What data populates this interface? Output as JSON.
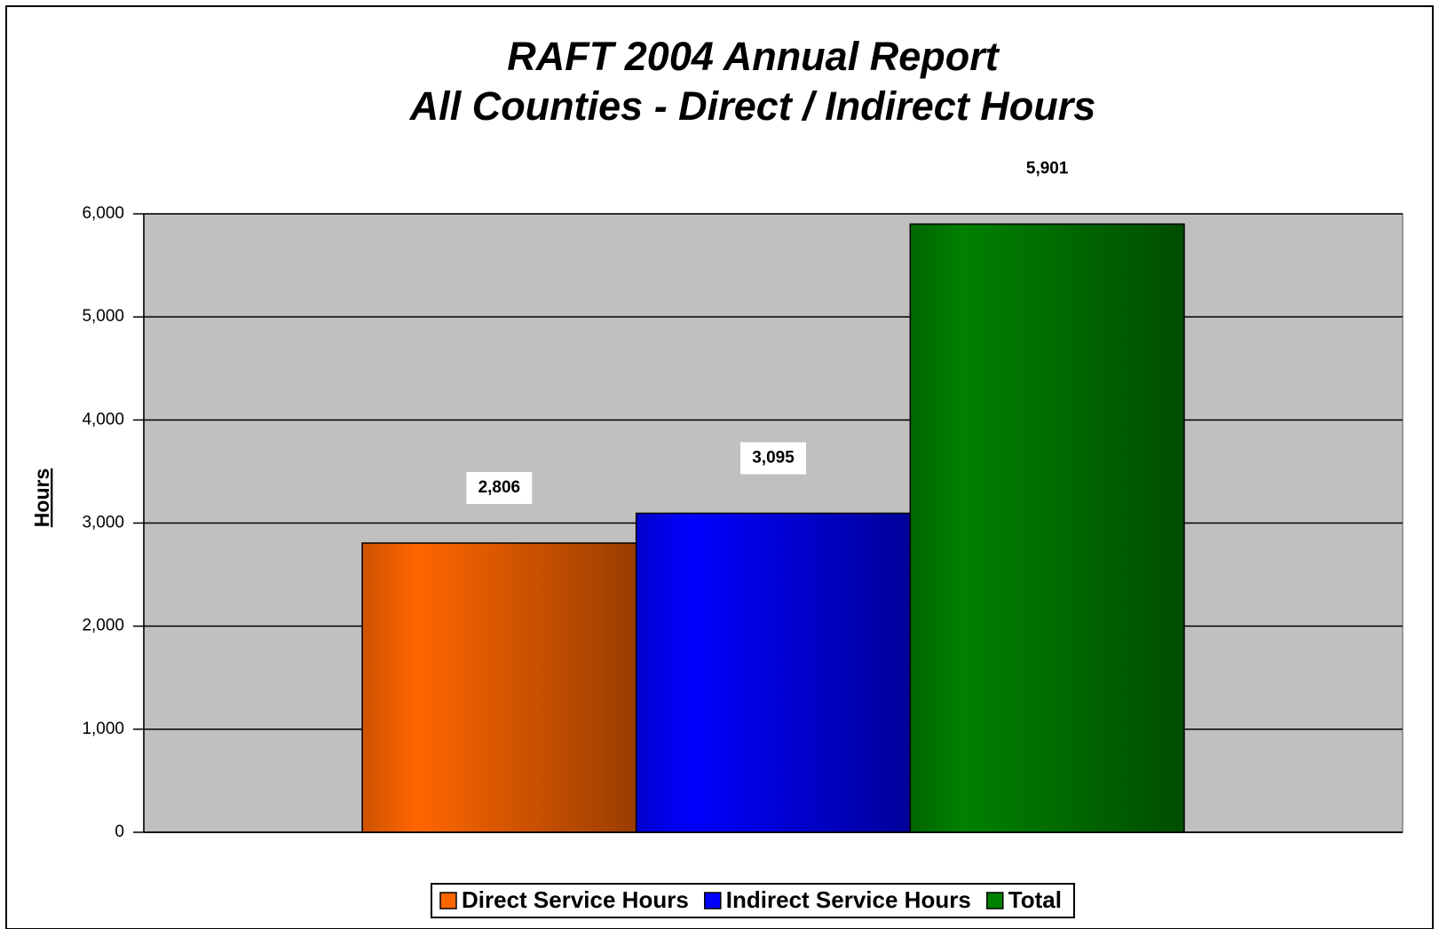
{
  "chart_data": {
    "type": "bar",
    "title": [
      "RAFT 2004 Annual Report",
      "All Counties - Direct / Indirect Hours"
    ],
    "y_label": "Hours",
    "categories": [
      null
    ],
    "series": [
      {
        "name": "Direct Service Hours",
        "color": "#ff6600",
        "values": [
          2806
        ],
        "value_labels": [
          "2,806"
        ]
      },
      {
        "name": "Indirect Service Hours",
        "color": "#0000ff",
        "values": [
          3095
        ],
        "value_labels": [
          "3,095"
        ]
      },
      {
        "name": "Total",
        "color": "#008000",
        "values": [
          5901
        ],
        "value_labels": [
          "5,901"
        ]
      }
    ],
    "ylim": [
      0,
      6000
    ],
    "yticks": [
      0,
      {
        "value": 1000,
        "label": "1,000"
      },
      {
        "value": 2000,
        "label": "2,000"
      },
      {
        "value": 3000,
        "label": "3,000"
      },
      {
        "value": 4000,
        "label": "4,000"
      },
      {
        "value": 5000,
        "label": "5,000"
      },
      {
        "value": 6000,
        "label": "6,000"
      }
    ],
    "grid": true,
    "legend": "bottom",
    "plot_background": "#c0c0c0"
  }
}
